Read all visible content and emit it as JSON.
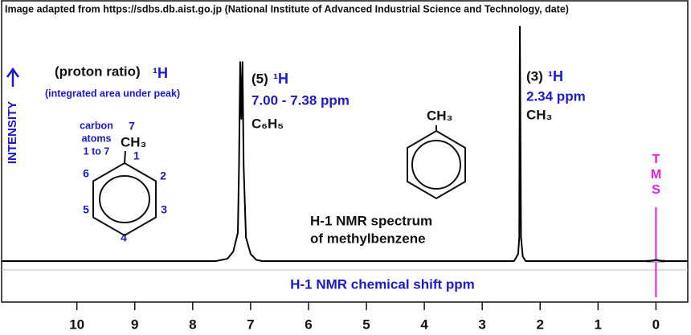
{
  "chart_data": {
    "type": "line",
    "source": "Image adapted from https://sdbs.db.aist.go.jp (National Institute of Advanced Industrial Science and Technology, date)",
    "title": [
      "H-1 NMR spectrum",
      "of methylbenzene"
    ],
    "xlabel": "H-1 NMR chemical shift  ppm",
    "ylabel": "INTENSITY",
    "x": [
      11.3,
      7.6,
      7.4,
      7.3,
      7.22,
      7.2,
      7.18,
      7.16,
      7.14,
      7.12,
      7.08,
      7.0,
      6.9,
      6.8,
      2.45,
      2.38,
      2.36,
      2.35,
      2.33,
      2.3,
      2.25,
      0.1,
      0.0,
      -0.1,
      -0.55
    ],
    "values": [
      0,
      0,
      1,
      4,
      12,
      40,
      84,
      60,
      84,
      40,
      10,
      3,
      0.5,
      0,
      0,
      3,
      10,
      99,
      10,
      2,
      0,
      0,
      0.5,
      0,
      0
    ],
    "color": "#000000",
    "xlim": [
      11.3,
      -0.55
    ],
    "ylim": [
      0,
      100
    ],
    "xticks": [
      10,
      9,
      8,
      7,
      6,
      5,
      4,
      3,
      2,
      1,
      0
    ],
    "tms": "TMS",
    "left_molecule": {
      "header": "(proton ratio)",
      "header_h": "¹H",
      "note": "(integrated area under peak)",
      "carbon_note": [
        "carbon",
        "atoms",
        "1 to 7"
      ],
      "ch3": "CH₃",
      "atoms": [
        "1",
        "2",
        "3",
        "4",
        "5",
        "6",
        "7"
      ]
    },
    "peak_aromatic": {
      "ratio": "(5)",
      "h": "¹H",
      "shift": "7.00 - 7.38 ppm",
      "group": "C₆H₅"
    },
    "peak_methyl": {
      "ratio": "(3)",
      "h": "¹H",
      "shift": "2.34 ppm",
      "group": "CH₃"
    },
    "center_molecule_ch3": "CH₃"
  }
}
